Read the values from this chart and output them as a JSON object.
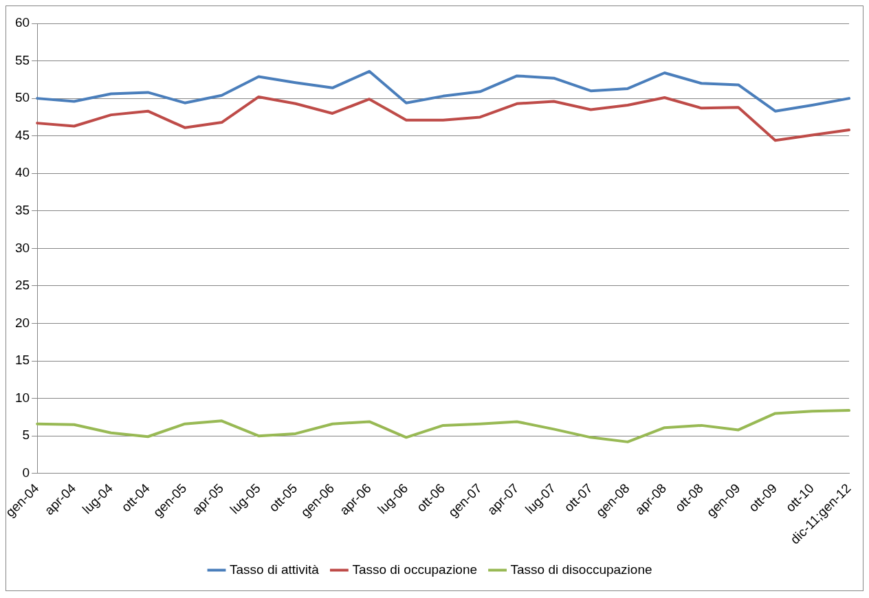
{
  "chart_data": {
    "type": "line",
    "categories": [
      "gen-04",
      "apr-04",
      "lug-04",
      "ott-04",
      "gen-05",
      "apr-05",
      "lug-05",
      "ott-05",
      "gen-06",
      "apr-06",
      "lug-06",
      "ott-06",
      "gen-07",
      "apr-07",
      "lug-07",
      "ott-07",
      "gen-08",
      "apr-08",
      "ott-08",
      "gen-09",
      "ott-09",
      "ott-10",
      "dic-11;gen-12"
    ],
    "series": [
      {
        "name": "Tasso di attività",
        "color": "#4a7ebb",
        "values": [
          50.0,
          49.6,
          50.6,
          50.8,
          49.4,
          50.4,
          52.9,
          52.1,
          51.4,
          53.6,
          49.4,
          50.3,
          50.9,
          53.0,
          52.7,
          51.0,
          51.3,
          53.4,
          52.0,
          51.8,
          48.3,
          49.1,
          50.0
        ]
      },
      {
        "name": "Tasso di occupazione",
        "color": "#be4b48",
        "values": [
          46.7,
          46.3,
          47.8,
          48.3,
          46.1,
          46.8,
          50.2,
          49.3,
          48.0,
          49.9,
          47.1,
          47.1,
          47.5,
          49.3,
          49.6,
          48.5,
          49.1,
          50.1,
          48.7,
          48.8,
          44.4,
          45.1,
          45.8
        ]
      },
      {
        "name": "Tasso di disoccupazione",
        "color": "#98b954",
        "values": [
          6.6,
          6.5,
          5.4,
          4.9,
          6.6,
          7.0,
          5.0,
          5.3,
          6.6,
          6.9,
          4.8,
          6.4,
          6.6,
          6.9,
          5.9,
          4.8,
          4.2,
          6.1,
          6.4,
          5.8,
          8.0,
          8.3,
          8.4
        ]
      }
    ],
    "ylim": [
      0,
      60
    ],
    "yticks": [
      0,
      5,
      10,
      15,
      20,
      25,
      30,
      35,
      40,
      45,
      50,
      55,
      60
    ],
    "grid": "y",
    "legend": "bottom",
    "marker": "none",
    "line_style": "solid"
  }
}
